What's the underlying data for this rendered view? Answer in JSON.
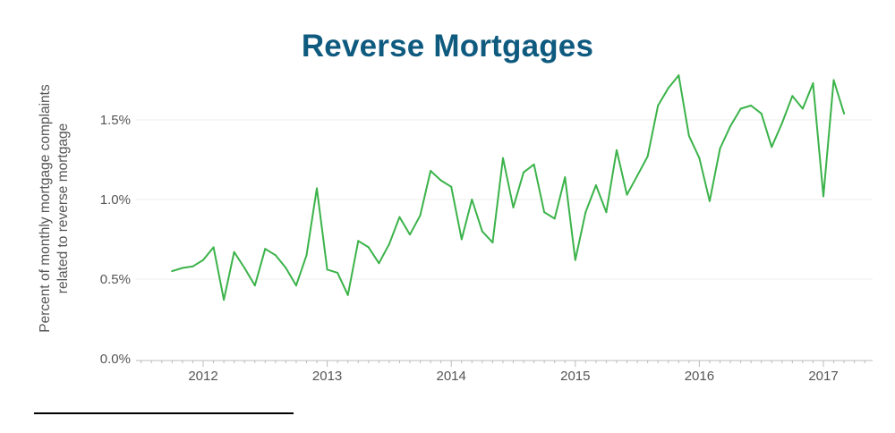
{
  "chart_data": {
    "type": "line",
    "title": "Reverse Mortgages",
    "xlabel": "",
    "ylabel": "Percent of monthly mortgage complaints related to reverse mortgage",
    "ylabel_lines": [
      "Percent of monthly mortgage complaints",
      "related to reverse mortgage"
    ],
    "y_ticks": [
      {
        "value": 0.0,
        "label": "0.0%"
      },
      {
        "value": 0.5,
        "label": "0.5%"
      },
      {
        "value": 1.0,
        "label": "1.0%"
      },
      {
        "value": 1.5,
        "label": "1.5%"
      }
    ],
    "x_ticks": [
      {
        "value": "2012-01",
        "label": "2012"
      },
      {
        "value": "2013-01",
        "label": "2013"
      },
      {
        "value": "2014-01",
        "label": "2014"
      },
      {
        "value": "2015-01",
        "label": "2015"
      },
      {
        "value": "2016-01",
        "label": "2016"
      },
      {
        "value": "2017-01",
        "label": "2017"
      }
    ],
    "xlim": [
      "2011-06",
      "2017-06"
    ],
    "ylim": [
      0,
      1.8
    ],
    "grid": true,
    "line_color": "#3bb34a",
    "series": [
      {
        "x": [
          "2011-10",
          "2011-11",
          "2011-12",
          "2012-01",
          "2012-02",
          "2012-03",
          "2012-04",
          "2012-05",
          "2012-06",
          "2012-07",
          "2012-08",
          "2012-09",
          "2012-10",
          "2012-11",
          "2012-12",
          "2013-01",
          "2013-02",
          "2013-03",
          "2013-04",
          "2013-05",
          "2013-06",
          "2013-07",
          "2013-08",
          "2013-09",
          "2013-10",
          "2013-11",
          "2013-12",
          "2014-01",
          "2014-02",
          "2014-03",
          "2014-04",
          "2014-05",
          "2014-06",
          "2014-07",
          "2014-08",
          "2014-09",
          "2014-10",
          "2014-11",
          "2014-12",
          "2015-01",
          "2015-02",
          "2015-03",
          "2015-04",
          "2015-05",
          "2015-06",
          "2015-07",
          "2015-08",
          "2015-09",
          "2015-10",
          "2015-11",
          "2015-12",
          "2016-01",
          "2016-02",
          "2016-03",
          "2016-04",
          "2016-05",
          "2016-06",
          "2016-07",
          "2016-08",
          "2016-09",
          "2016-10",
          "2016-11",
          "2016-12",
          "2017-01",
          "2017-02",
          "2017-03"
        ],
        "values": [
          0.55,
          0.57,
          0.58,
          0.62,
          0.7,
          0.37,
          0.67,
          0.57,
          0.46,
          0.69,
          0.65,
          0.57,
          0.46,
          0.65,
          1.07,
          0.56,
          0.54,
          0.4,
          0.74,
          0.7,
          0.6,
          0.72,
          0.89,
          0.78,
          0.9,
          1.18,
          1.12,
          1.08,
          0.75,
          1.0,
          0.8,
          0.73,
          1.26,
          0.95,
          1.17,
          1.22,
          0.92,
          0.88,
          1.14,
          0.62,
          0.92,
          1.09,
          0.92,
          1.31,
          1.03,
          1.15,
          1.27,
          1.59,
          1.7,
          1.78,
          1.4,
          1.26,
          0.99,
          1.32,
          1.46,
          1.57,
          1.59,
          1.54,
          1.33,
          1.48,
          1.65,
          1.57,
          1.73,
          1.02,
          1.75,
          1.54
        ]
      }
    ]
  }
}
